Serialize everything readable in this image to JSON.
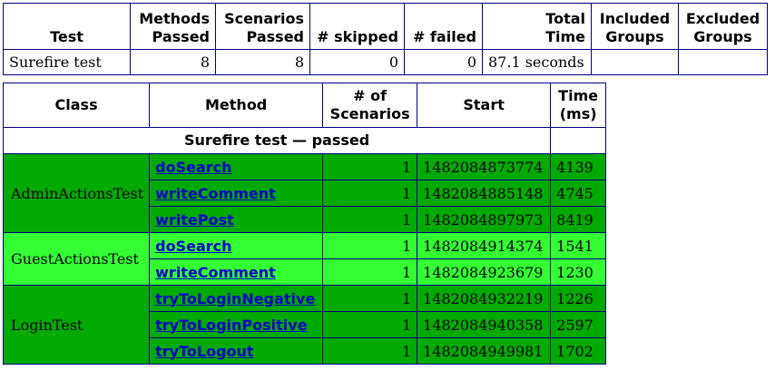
{
  "summary": {
    "headers": {
      "test": "Test",
      "methods_passed": [
        "Methods",
        "Passed"
      ],
      "scenarios_passed": [
        "Scenarios",
        "Passed"
      ],
      "skipped": "# skipped",
      "failed": "# failed",
      "total_time": [
        "Total",
        "Time"
      ],
      "included_groups": [
        "Included",
        "Groups"
      ],
      "excluded_groups": [
        "Excluded",
        "Groups"
      ]
    },
    "row": {
      "test": "Surefire test",
      "methods_passed": "8",
      "scenarios_passed": "8",
      "skipped": "0",
      "failed": "0",
      "total_time": "87.1 seconds",
      "included_groups": "",
      "excluded_groups": ""
    }
  },
  "results": {
    "headers": {
      "class": "Class",
      "method": "Method",
      "scenarios": [
        "# of",
        "Scenarios"
      ],
      "start": "Start",
      "time": [
        "Time",
        "(ms)"
      ]
    },
    "suite_label": "Surefire test — passed",
    "colors": {
      "pass_dark": "#00aa00",
      "pass_light": "#33ff33",
      "link": "#0000cc"
    },
    "classes": [
      {
        "name": "AdminActionsTest",
        "shade": "dark",
        "methods": [
          {
            "name": "doSearch",
            "scenarios": "1",
            "start": "1482084873774",
            "time": "4139"
          },
          {
            "name": "writeComment",
            "scenarios": "1",
            "start": "1482084885148",
            "time": "4745"
          },
          {
            "name": "writePost",
            "scenarios": "1",
            "start": "1482084897973",
            "time": "8419"
          }
        ]
      },
      {
        "name": "GuestActionsTest",
        "shade": "light",
        "methods": [
          {
            "name": "doSearch",
            "scenarios": "1",
            "start": "1482084914374",
            "time": "1541"
          },
          {
            "name": "writeComment",
            "scenarios": "1",
            "start": "1482084923679",
            "time": "1230"
          }
        ]
      },
      {
        "name": "LoginTest",
        "shade": "dark",
        "methods": [
          {
            "name": "tryToLoginNegative",
            "scenarios": "1",
            "start": "1482084932219",
            "time": "1226"
          },
          {
            "name": "tryToLoginPositive",
            "scenarios": "1",
            "start": "1482084940358",
            "time": "2597"
          },
          {
            "name": "tryToLogout",
            "scenarios": "1",
            "start": "1482084949981",
            "time": "1702"
          }
        ]
      }
    ]
  }
}
